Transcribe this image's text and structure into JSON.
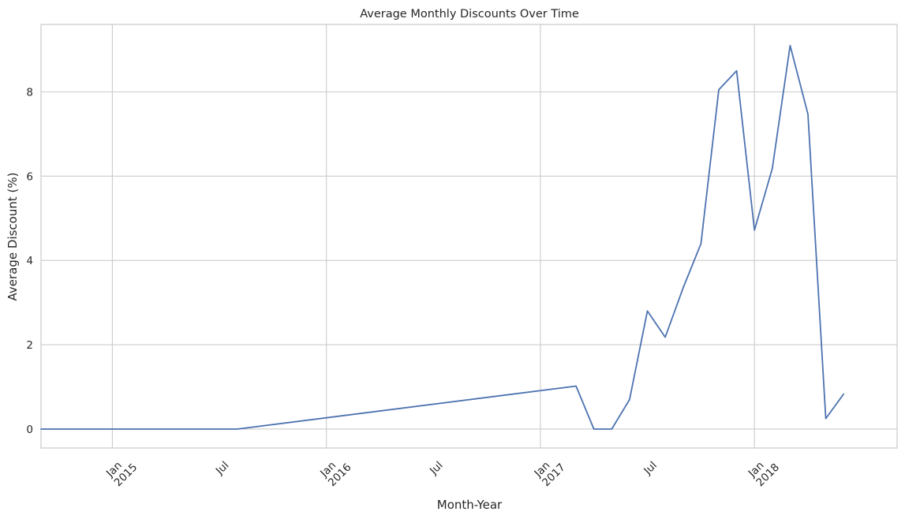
{
  "chart_data": {
    "type": "line",
    "title": "Average Monthly Discounts Over Time",
    "xlabel": "Month-Year",
    "ylabel": "Average Discount (%)",
    "xlim": [
      "2014-09",
      "2018-09"
    ],
    "ylim": [
      -0.45,
      9.6
    ],
    "grid": true,
    "line_color": "#4c72b0",
    "grid_color": "#cccccc",
    "axis_color": "#cccccc",
    "x_ticks": [
      {
        "x": "2015-01",
        "label": [
          "Jan",
          "2015"
        ],
        "major": true
      },
      {
        "x": "2015-07",
        "label": [
          "Jul"
        ],
        "major": false
      },
      {
        "x": "2016-01",
        "label": [
          "Jan",
          "2016"
        ],
        "major": true
      },
      {
        "x": "2016-07",
        "label": [
          "Jul"
        ],
        "major": false
      },
      {
        "x": "2017-01",
        "label": [
          "Jan",
          "2017"
        ],
        "major": true
      },
      {
        "x": "2017-07",
        "label": [
          "Jul"
        ],
        "major": false
      },
      {
        "x": "2018-01",
        "label": [
          "Jan",
          "2018"
        ],
        "major": true
      }
    ],
    "y_ticks": [
      0,
      2,
      4,
      6,
      8
    ],
    "series": [
      {
        "points": [
          {
            "x": "2014-09",
            "y": 0
          },
          {
            "x": "2015-08",
            "y": 0
          },
          {
            "x": "2017-03",
            "y": 1.02
          },
          {
            "x": "2017-04",
            "y": 0
          },
          {
            "x": "2017-05",
            "y": 0
          },
          {
            "x": "2017-06",
            "y": 0.7
          },
          {
            "x": "2017-07",
            "y": 2.8
          },
          {
            "x": "2017-08",
            "y": 2.18
          },
          {
            "x": "2017-09",
            "y": 3.35
          },
          {
            "x": "2017-10",
            "y": 4.4
          },
          {
            "x": "2017-11",
            "y": 8.05
          },
          {
            "x": "2017-12",
            "y": 8.5
          },
          {
            "x": "2018-01",
            "y": 4.72
          },
          {
            "x": "2018-02",
            "y": 6.18
          },
          {
            "x": "2018-03",
            "y": 9.1
          },
          {
            "x": "2018-04",
            "y": 7.47
          },
          {
            "x": "2018-05",
            "y": 0.25
          },
          {
            "x": "2018-06",
            "y": 0.83
          }
        ]
      }
    ]
  }
}
